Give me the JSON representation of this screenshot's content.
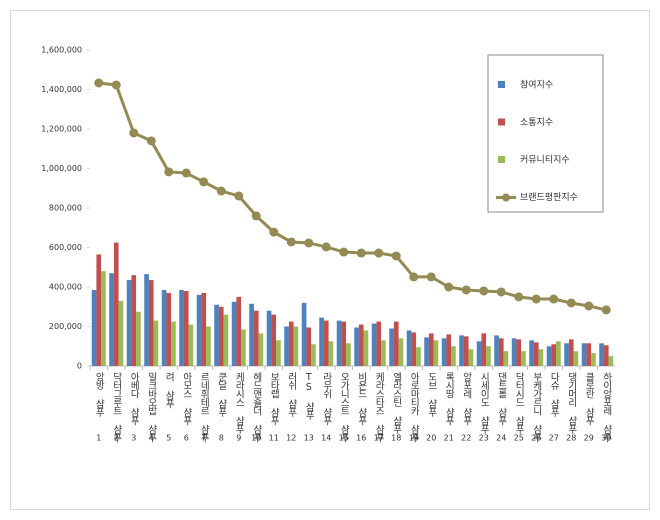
{
  "chart_data": {
    "type": "bar",
    "categories": [
      "앙방 샴푸",
      "닥터그루트 샴푸",
      "아베다 샴푸",
      "밀크바오밥 샴푸",
      "려 샴푸",
      "아모스 샴푸",
      "르네휘테르 샴푸",
      "쿤달 샴푸",
      "케라시스 샴푸",
      "헤드앤숄더 샴푸",
      "보타랩 샴푸",
      "러쉬 샴푸",
      "TS 샴푸",
      "라우쉬 샴푸",
      "오가니스트 샴푸",
      "비욘드 샴푸",
      "케라스타즈 샴푸",
      "엘라스틴 샴푸",
      "아로마티카 샴푸",
      "도브 샴푸",
      "록시땅 샴푸",
      "앙포레 샴푸",
      "시세이도 샴푸",
      "댄트롤 샴푸",
      "닥터시드 샴푸",
      "부케가르니 샴푸",
      "다슈 샴푸",
      "댕기머리 샴푸",
      "클로란 샴푸",
      "하이앙포레 샴푸"
    ],
    "ranks": [
      1,
      2,
      3,
      4,
      5,
      6,
      7,
      8,
      9,
      10,
      11,
      12,
      13,
      14,
      15,
      16,
      17,
      18,
      19,
      20,
      21,
      22,
      23,
      24,
      25,
      26,
      27,
      28,
      29,
      30
    ],
    "series": [
      {
        "name": "참여지수",
        "color": "#4f81bd",
        "kind": "bar",
        "values": [
          385000,
          470000,
          435000,
          465000,
          385000,
          385000,
          360000,
          310000,
          325000,
          315000,
          280000,
          200000,
          320000,
          245000,
          230000,
          195000,
          215000,
          190000,
          180000,
          145000,
          140000,
          155000,
          125000,
          155000,
          140000,
          130000,
          100000,
          115000,
          115000,
          115000
        ]
      },
      {
        "name": "소통지수",
        "color": "#c0504d",
        "kind": "bar",
        "values": [
          565000,
          625000,
          460000,
          435000,
          370000,
          380000,
          370000,
          300000,
          350000,
          280000,
          260000,
          225000,
          195000,
          230000,
          225000,
          210000,
          225000,
          225000,
          170000,
          165000,
          160000,
          150000,
          165000,
          140000,
          135000,
          120000,
          110000,
          135000,
          115000,
          105000
        ]
      },
      {
        "name": "커뮤니티지수",
        "color": "#9bbb59",
        "kind": "bar",
        "values": [
          480000,
          330000,
          275000,
          230000,
          225000,
          210000,
          200000,
          260000,
          185000,
          165000,
          130000,
          200000,
          110000,
          125000,
          115000,
          180000,
          130000,
          140000,
          95000,
          130000,
          100000,
          85000,
          100000,
          75000,
          75000,
          85000,
          125000,
          75000,
          65000,
          50000
        ]
      },
      {
        "name": "브랜드평판지수",
        "color": "#948a54",
        "kind": "line",
        "values": [
          1433000,
          1423000,
          1180000,
          1140000,
          983000,
          977000,
          932000,
          886000,
          861000,
          760000,
          678000,
          628000,
          623000,
          603000,
          577000,
          572000,
          572000,
          557000,
          451000,
          451000,
          400000,
          385000,
          380000,
          375000,
          350000,
          339000,
          339000,
          319000,
          304000,
          284000
        ]
      }
    ],
    "ylim": [
      0,
      1600000
    ],
    "yticks": [
      0,
      {
        "value": 200000,
        "label": "200,000"
      },
      {
        "value": 400000,
        "label": "400,000"
      },
      {
        "value": 600000,
        "label": "600,000"
      },
      {
        "value": 800000,
        "label": "800,000"
      },
      {
        "value": 1000000,
        "label": "1,000,000"
      },
      {
        "value": 1200000,
        "label": "1,200,000"
      },
      {
        "value": 1400000,
        "label": "1,400,000"
      },
      {
        "value": 1600000,
        "label": "1,600,000"
      }
    ],
    "grid": false,
    "legend": "top-right"
  }
}
